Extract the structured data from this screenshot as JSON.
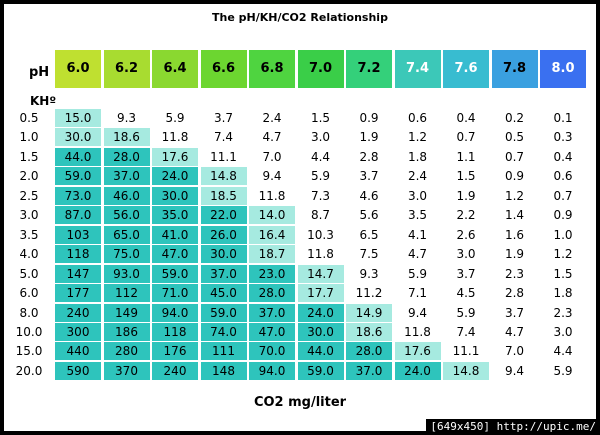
{
  "colors": {
    "header": [
      "#bfe030",
      "#a8dc30",
      "#8ad830",
      "#6cd630",
      "#4fd440",
      "#3ace48",
      "#34d07a",
      "#3cc8b8",
      "#38bcd0",
      "#3aa0e0",
      "#3a70f0"
    ],
    "high": "#2ec4bc",
    "mid": "#a6eae0"
  },
  "chart_data": {
    "type": "table",
    "title": "The pH/KH/CO2 Relationship",
    "xlabel": "CO2 mg/liter",
    "row_header_label": "KHº",
    "col_header_label": "pH",
    "columns": [
      "6.0",
      "6.2",
      "6.4",
      "6.6",
      "6.8",
      "7.0",
      "7.2",
      "7.4",
      "7.6",
      "7.8",
      "8.0"
    ],
    "rows": [
      {
        "kh": "0.5",
        "values": [
          "15.0",
          "9.3",
          "5.9",
          "3.7",
          "2.4",
          "1.5",
          "0.9",
          "0.6",
          "0.4",
          "0.2",
          "0.1"
        ],
        "bands": [
          1,
          0,
          0,
          0,
          0,
          0,
          0,
          0,
          0,
          0,
          0
        ]
      },
      {
        "kh": "1.0",
        "values": [
          "30.0",
          "18.6",
          "11.8",
          "7.4",
          "4.7",
          "3.0",
          "1.9",
          "1.2",
          "0.7",
          "0.5",
          "0.3"
        ],
        "bands": [
          1,
          1,
          0,
          0,
          0,
          0,
          0,
          0,
          0,
          0,
          0
        ]
      },
      {
        "kh": "1.5",
        "values": [
          "44.0",
          "28.0",
          "17.6",
          "11.1",
          "7.0",
          "4.4",
          "2.8",
          "1.8",
          "1.1",
          "0.7",
          "0.4"
        ],
        "bands": [
          2,
          2,
          1,
          0,
          0,
          0,
          0,
          0,
          0,
          0,
          0
        ]
      },
      {
        "kh": "2.0",
        "values": [
          "59.0",
          "37.0",
          "24.0",
          "14.8",
          "9.4",
          "5.9",
          "3.7",
          "2.4",
          "1.5",
          "0.9",
          "0.6"
        ],
        "bands": [
          2,
          2,
          2,
          1,
          0,
          0,
          0,
          0,
          0,
          0,
          0
        ]
      },
      {
        "kh": "2.5",
        "values": [
          "73.0",
          "46.0",
          "30.0",
          "18.5",
          "11.8",
          "7.3",
          "4.6",
          "3.0",
          "1.9",
          "1.2",
          "0.7"
        ],
        "bands": [
          2,
          2,
          2,
          1,
          0,
          0,
          0,
          0,
          0,
          0,
          0
        ]
      },
      {
        "kh": "3.0",
        "values": [
          "87.0",
          "56.0",
          "35.0",
          "22.0",
          "14.0",
          "8.7",
          "5.6",
          "3.5",
          "2.2",
          "1.4",
          "0.9"
        ],
        "bands": [
          2,
          2,
          2,
          2,
          1,
          0,
          0,
          0,
          0,
          0,
          0
        ]
      },
      {
        "kh": "3.5",
        "values": [
          "103",
          "65.0",
          "41.0",
          "26.0",
          "16.4",
          "10.3",
          "6.5",
          "4.1",
          "2.6",
          "1.6",
          "1.0"
        ],
        "bands": [
          2,
          2,
          2,
          2,
          1,
          0,
          0,
          0,
          0,
          0,
          0
        ]
      },
      {
        "kh": "4.0",
        "values": [
          "118",
          "75.0",
          "47.0",
          "30.0",
          "18.7",
          "11.8",
          "7.5",
          "4.7",
          "3.0",
          "1.9",
          "1.2"
        ],
        "bands": [
          2,
          2,
          2,
          2,
          1,
          0,
          0,
          0,
          0,
          0,
          0
        ]
      },
      {
        "kh": "5.0",
        "values": [
          "147",
          "93.0",
          "59.0",
          "37.0",
          "23.0",
          "14.7",
          "9.3",
          "5.9",
          "3.7",
          "2.3",
          "1.5"
        ],
        "bands": [
          2,
          2,
          2,
          2,
          2,
          1,
          0,
          0,
          0,
          0,
          0
        ]
      },
      {
        "kh": "6.0",
        "values": [
          "177",
          "112",
          "71.0",
          "45.0",
          "28.0",
          "17.7",
          "11.2",
          "7.1",
          "4.5",
          "2.8",
          "1.8"
        ],
        "bands": [
          2,
          2,
          2,
          2,
          2,
          1,
          0,
          0,
          0,
          0,
          0
        ]
      },
      {
        "kh": "8.0",
        "values": [
          "240",
          "149",
          "94.0",
          "59.0",
          "37.0",
          "24.0",
          "14.9",
          "9.4",
          "5.9",
          "3.7",
          "2.3"
        ],
        "bands": [
          2,
          2,
          2,
          2,
          2,
          2,
          1,
          0,
          0,
          0,
          0
        ]
      },
      {
        "kh": "10.0",
        "values": [
          "300",
          "186",
          "118",
          "74.0",
          "47.0",
          "30.0",
          "18.6",
          "11.8",
          "7.4",
          "4.7",
          "3.0"
        ],
        "bands": [
          2,
          2,
          2,
          2,
          2,
          2,
          1,
          0,
          0,
          0,
          0
        ]
      },
      {
        "kh": "15.0",
        "values": [
          "440",
          "280",
          "176",
          "111",
          "70.0",
          "44.0",
          "28.0",
          "17.6",
          "11.1",
          "7.0",
          "4.4"
        ],
        "bands": [
          2,
          2,
          2,
          2,
          2,
          2,
          2,
          1,
          0,
          0,
          0
        ]
      },
      {
        "kh": "20.0",
        "values": [
          "590",
          "370",
          "240",
          "148",
          "94.0",
          "59.0",
          "37.0",
          "24.0",
          "14.8",
          "9.4",
          "5.9"
        ],
        "bands": [
          2,
          2,
          2,
          2,
          2,
          2,
          2,
          2,
          1,
          0,
          0
        ]
      }
    ]
  },
  "credit": "[649x450] http://upic.me/"
}
